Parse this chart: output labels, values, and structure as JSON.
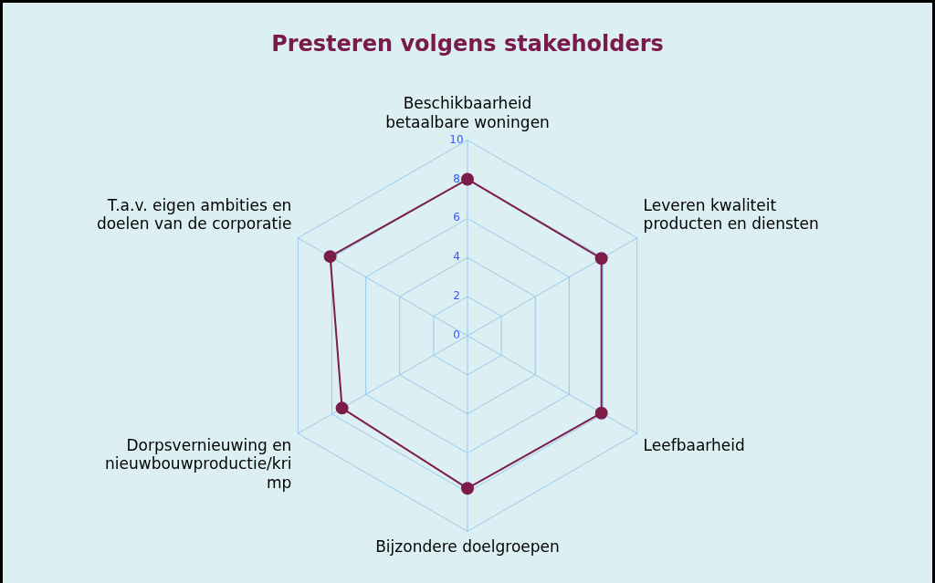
{
  "chart_data": {
    "type": "radar",
    "title": "Presteren volgens stakeholders",
    "categories": [
      "Beschikbaarheid\nbetaalbare woningen",
      "Leveren kwaliteit\nproducten en diensten",
      "Leefbaarheid",
      "Bijzondere doelgroepen",
      "Dorpsvernieuwing en\nnieuwbouwproductie/kri\nmp",
      "T.a.v. eigen ambities en\ndoelen van de corporatie"
    ],
    "series": [
      {
        "color": "#7b1c4b",
        "values": [
          8.0,
          7.9,
          7.9,
          7.8,
          7.4,
          8.1
        ]
      }
    ],
    "ylim": [
      0,
      10
    ],
    "yticks": [
      0,
      2,
      4,
      6,
      8,
      10
    ],
    "grid": true,
    "legend": false,
    "marker": "circle",
    "line_style": "solid"
  }
}
